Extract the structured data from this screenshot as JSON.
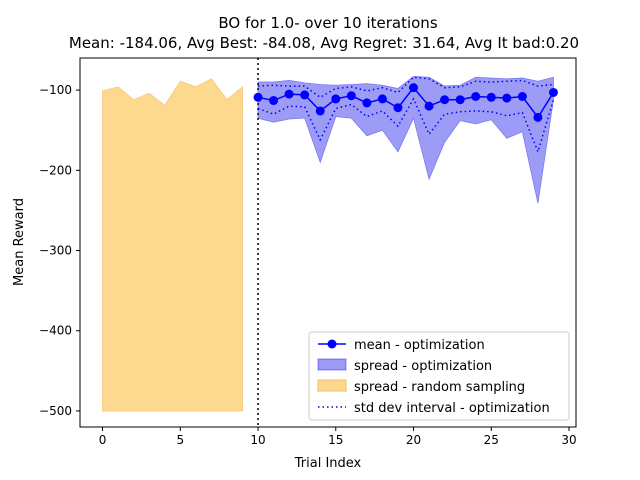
{
  "chart_data": {
    "type": "line",
    "title_line1": "BO for 1.0- over 10 iterations",
    "title_line2": "Mean: -184.06, Avg Best: -84.08, Avg Regret: 31.64, Avg It bad:0.20",
    "xlabel": "Trial Index",
    "ylabel": "Mean Reward",
    "xlim": [
      -1.45,
      30.45
    ],
    "ylim": [
      -520,
      -60
    ],
    "xticks": [
      0,
      5,
      10,
      15,
      20,
      25,
      30
    ],
    "yticks": [
      -500,
      -400,
      -300,
      -200,
      -100
    ],
    "vline_x": 10,
    "legend_position": "lower right",
    "random_sampling": {
      "name": "spread - random sampling",
      "color": "#fdd990",
      "x": [
        0,
        1,
        2,
        3,
        4,
        5,
        6,
        7,
        8,
        9
      ],
      "upper": [
        -101,
        -96,
        -112,
        -104,
        -119,
        -89,
        -96,
        -86,
        -112,
        -96
      ],
      "lower": [
        -500,
        -500,
        -500,
        -500,
        -500,
        -500,
        -500,
        -500,
        -500,
        -500
      ]
    },
    "optimization": {
      "x": [
        10,
        11,
        12,
        13,
        14,
        15,
        16,
        17,
        18,
        19,
        20,
        21,
        22,
        23,
        24,
        25,
        26,
        27,
        28,
        29
      ],
      "mean": [
        -109,
        -113,
        -105,
        -106,
        -126,
        -111,
        -107,
        -116,
        -111,
        -122,
        -97,
        -120,
        -112,
        -112,
        -108,
        -109,
        -110,
        -108,
        -134,
        -103
      ],
      "upper": [
        -90,
        -90,
        -88,
        -91,
        -93,
        -94,
        -93,
        -92,
        -94,
        -98,
        -83,
        -84,
        -95,
        -94,
        -84,
        -85,
        -86,
        -85,
        -89,
        -84
      ],
      "lower": [
        -135,
        -140,
        -136,
        -135,
        -190,
        -133,
        -135,
        -157,
        -150,
        -177,
        -135,
        -211,
        -165,
        -138,
        -142,
        -137,
        -160,
        -152,
        -241,
        -112
      ],
      "std_upper": [
        -95,
        -94,
        -95,
        -95,
        -109,
        -98,
        -96,
        -101,
        -97,
        -103,
        -84,
        -86,
        -97,
        -96,
        -89,
        -90,
        -89,
        -88,
        -95,
        -93
      ],
      "std_lower": [
        -123,
        -130,
        -120,
        -121,
        -162,
        -123,
        -118,
        -133,
        -126,
        -145,
        -111,
        -155,
        -130,
        -127,
        -126,
        -127,
        -132,
        -128,
        -177,
        -112
      ],
      "mean_name": "mean - optimization",
      "spread_name": "spread - optimization",
      "std_name": "std dev interval - optimization",
      "line_color": "#0000ff",
      "spread_color": "#9c9cf7"
    }
  }
}
